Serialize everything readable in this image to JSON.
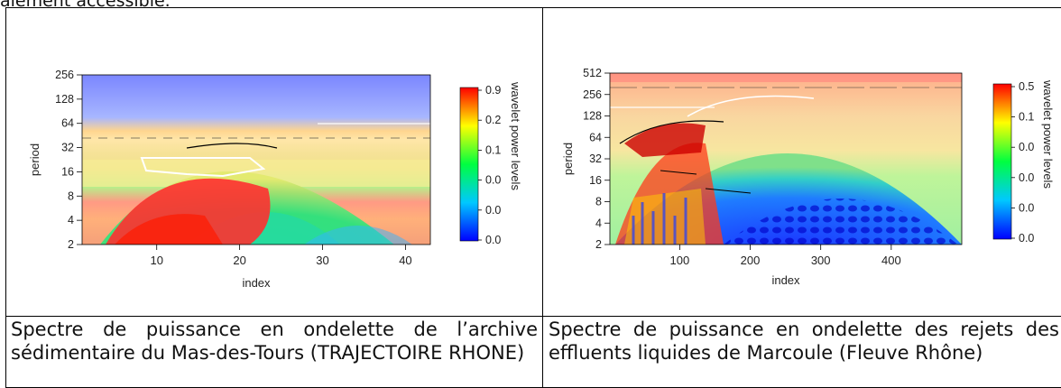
{
  "header_fragment": "alement accessible.",
  "chart_data": [
    {
      "type": "heatmap",
      "xlabel": "index",
      "ylabel": "period",
      "x_ticks": [
        10,
        20,
        30,
        40
      ],
      "xlim": [
        1,
        43
      ],
      "y_ticks": [
        2,
        4,
        8,
        16,
        32,
        64,
        128,
        256
      ],
      "y_scale": "log2",
      "ylim": [
        2,
        256
      ],
      "legend_label": "wavelet power levels",
      "legend_ticks": [
        "0.9",
        "0.2",
        "0.1",
        "0.0",
        "0.0",
        "0.0"
      ],
      "caption": "Spectre de puissance en ondelette de l’archive sédimentaire du Mas-des-Tours (TRAJECTOIRE RHONE)",
      "colors": {
        "low": "#0000ff",
        "mid": "#00ff00",
        "high": "#ff0000"
      }
    },
    {
      "type": "heatmap",
      "xlabel": "index",
      "ylabel": "period",
      "x_ticks": [
        100,
        200,
        300,
        400
      ],
      "xlim": [
        1,
        500
      ],
      "y_ticks": [
        2,
        4,
        8,
        16,
        32,
        64,
        128,
        256,
        512
      ],
      "y_scale": "log2",
      "ylim": [
        2,
        512
      ],
      "legend_label": "wavelet power levels",
      "legend_ticks": [
        "0.5",
        "0.1",
        "0.0",
        "0.0",
        "0.0",
        "0.0"
      ],
      "caption": "Spectre de puissance en ondelette des rejets des effluents liquides de Marcoule (Fleuve Rhône)",
      "colors": {
        "low": "#0000ff",
        "mid": "#00ff00",
        "high": "#ff0000"
      }
    }
  ]
}
